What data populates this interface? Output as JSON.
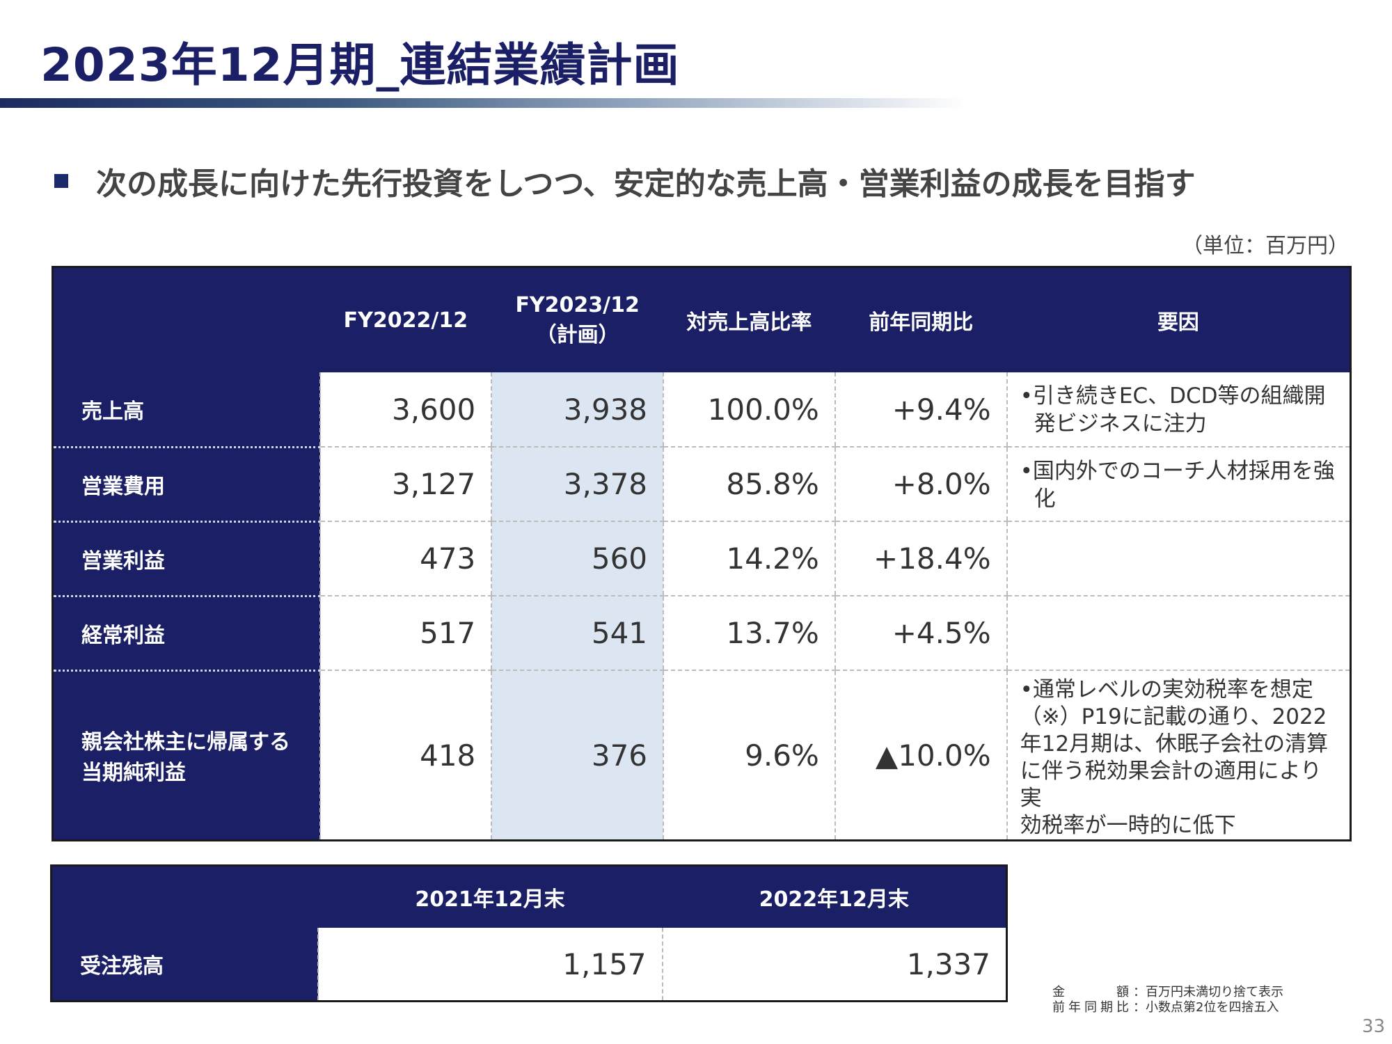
{
  "title": "2023年12月期_連結業績計画",
  "subtitle": "次の成長に向けた先行投資をしつつ、安定的な売上高・営業利益の成長を目指す",
  "unit": "（単位：百万円）",
  "table": {
    "headers": {
      "fy2022": "FY2022/12",
      "fy2023_line1": "FY2023/12",
      "fy2023_line2": "（計画）",
      "ratio": "対売上高比率",
      "yoy": "前年同期比",
      "reason": "要因"
    },
    "rows": [
      {
        "label": "売上高",
        "fy2022": "3,600",
        "fy2023": "3,938",
        "ratio": "100.0%",
        "yoy": "+9.4%",
        "reason": [
          "•引き続きEC、DCD等の組織開",
          "発ビジネスに注力"
        ]
      },
      {
        "label": "営業費用",
        "fy2022": "3,127",
        "fy2023": "3,378",
        "ratio": "85.8%",
        "yoy": "+8.0%",
        "reason": [
          "•国内外でのコーチ人材採用を強",
          "化"
        ]
      },
      {
        "label": "営業利益",
        "fy2022": "473",
        "fy2023": "560",
        "ratio": "14.2%",
        "yoy": "+18.4%",
        "reason": []
      },
      {
        "label": "経常利益",
        "fy2022": "517",
        "fy2023": "541",
        "ratio": "13.7%",
        "yoy": "+4.5%",
        "reason": []
      },
      {
        "label_line1": "親会社株主に帰属する",
        "label_line2": "当期純利益",
        "fy2022": "418",
        "fy2023": "376",
        "ratio": "9.6%",
        "yoy": "▲10.0%",
        "reason": [
          "•通常レベルの実効税率を想定",
          "（※）P19に記載の通り、2022",
          "年12月期は、休眠子会社の清算",
          "に伴う税効果会計の適用により実",
          "効税率が一時的に低下"
        ]
      }
    ]
  },
  "backlog": {
    "col1": "2021年12月末",
    "col2": "2022年12月末",
    "label": "受注残高",
    "v1": "1,157",
    "v2": "1,337"
  },
  "notes": {
    "label1": "金額",
    "text1": "：百万円未満切り捨て表示",
    "label2": "前年同期比",
    "text2": "：小数点第2位を四捨五入"
  },
  "page_number": "33",
  "colors": {
    "navy": "#1b1f66",
    "highlight": "#dce6f2"
  }
}
